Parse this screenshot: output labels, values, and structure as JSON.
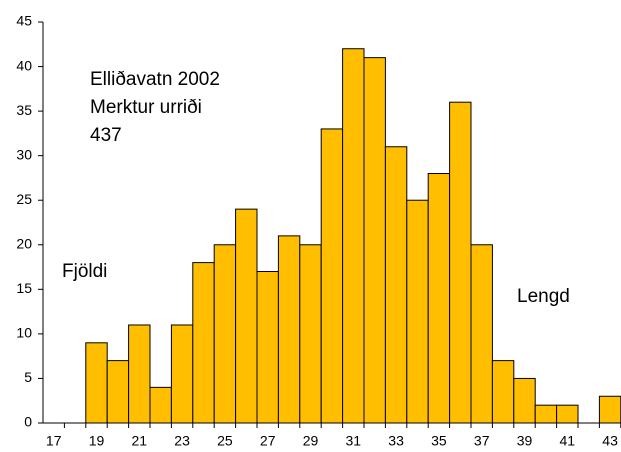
{
  "chart_data": {
    "type": "bar",
    "annotations": [
      "Elliðavatn 2002",
      "Merktur urriði",
      "437"
    ],
    "ylabel": "Fjöldi",
    "xlabel": "Lengd",
    "categories": [
      17,
      null,
      19,
      null,
      21,
      null,
      23,
      null,
      25,
      null,
      27,
      null,
      29,
      null,
      31,
      null,
      33,
      null,
      35,
      null,
      37,
      null,
      39,
      null,
      41,
      null,
      43
    ],
    "values": [
      0,
      0,
      9,
      7,
      11,
      4,
      11,
      18,
      20,
      24,
      17,
      21,
      20,
      33,
      42,
      41,
      31,
      25,
      28,
      36,
      20,
      7,
      5,
      2,
      2,
      0,
      3
    ],
    "color": "#ffbf00",
    "ylim": [
      0,
      45
    ],
    "yticks": [
      0,
      5,
      10,
      15,
      20,
      25,
      30,
      35,
      40,
      45
    ],
    "grid": false
  }
}
